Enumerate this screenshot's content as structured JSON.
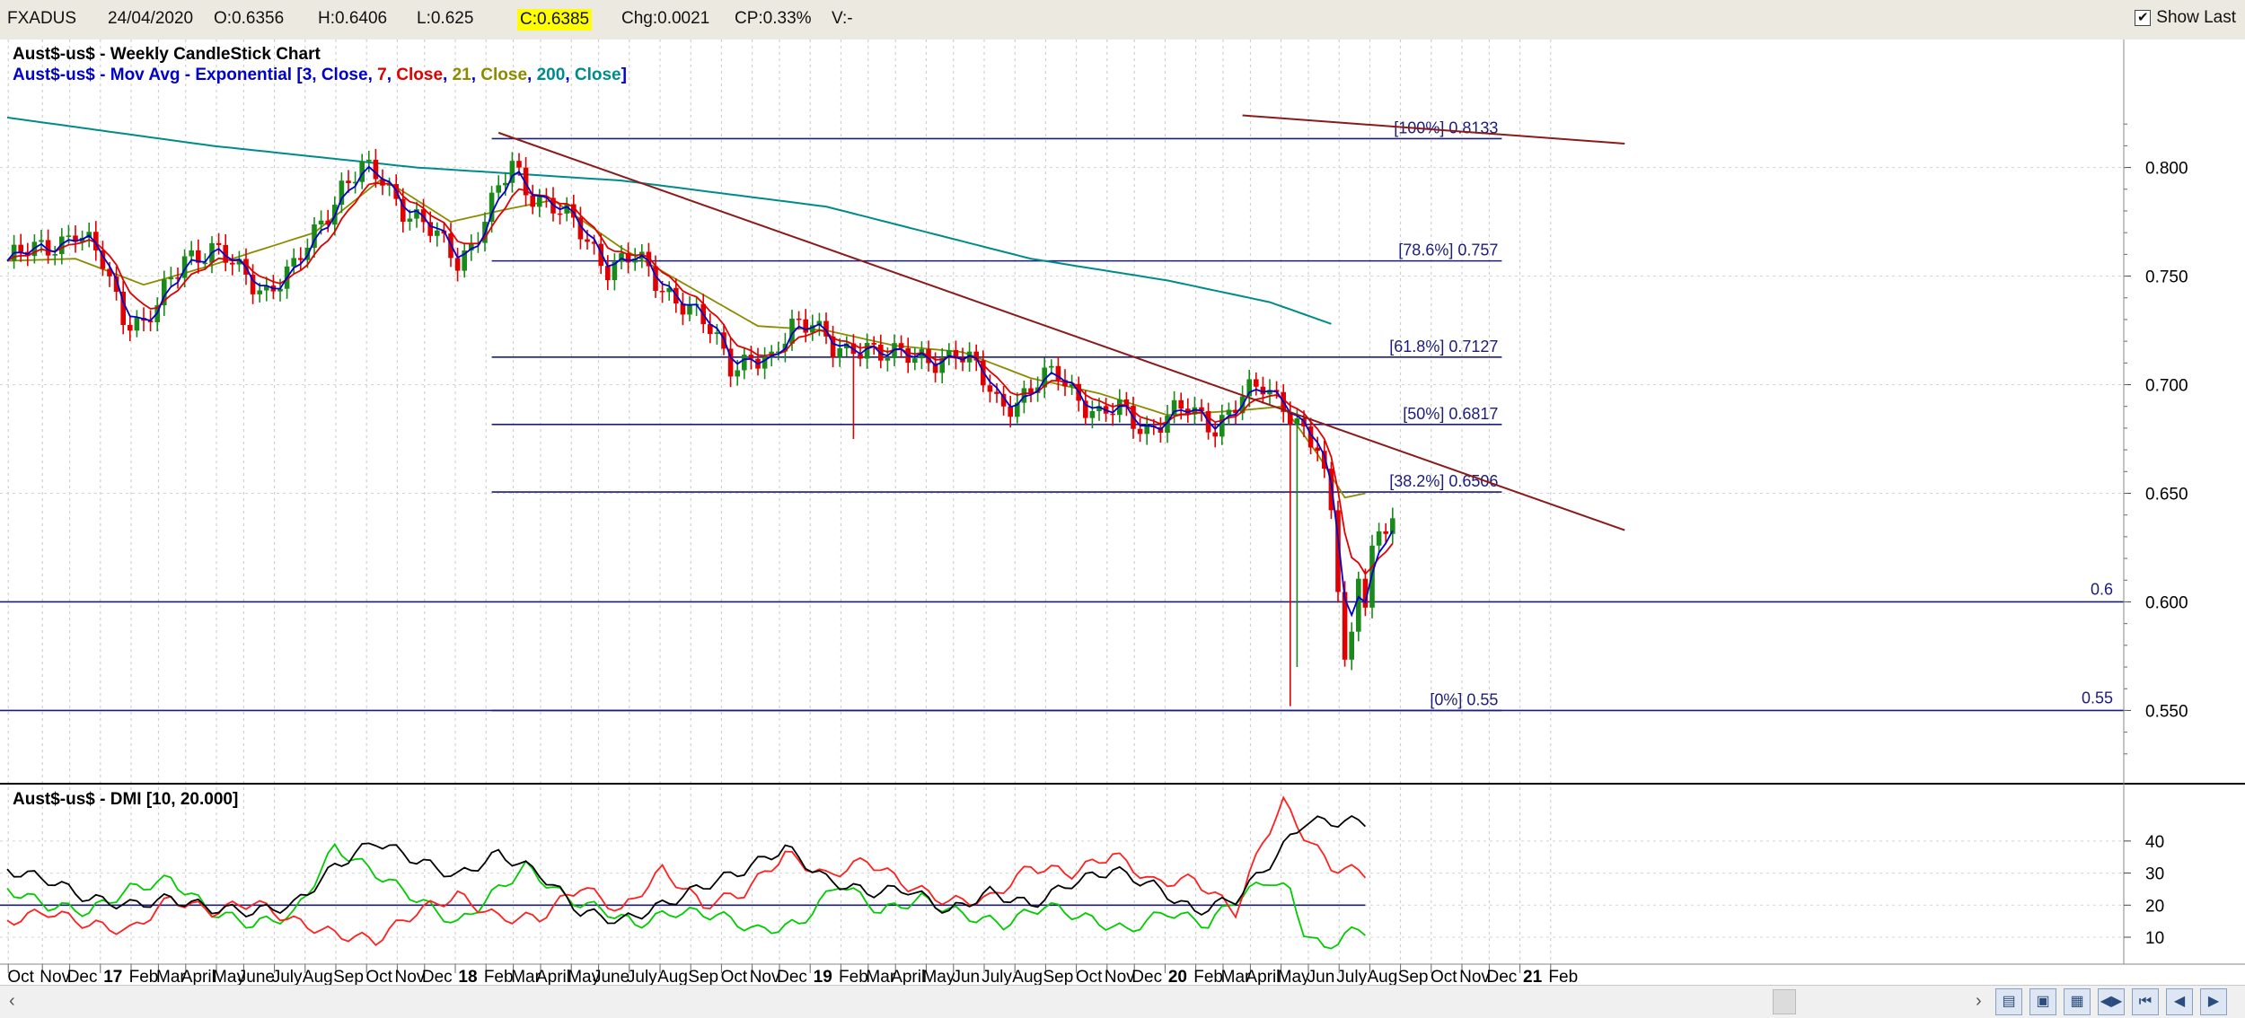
{
  "toolbar": {
    "symbol": "FXADUS",
    "date": "24/04/2020",
    "open": "O:0.6356",
    "high": "H:0.6406",
    "low": "L:0.625",
    "close": "C:0.6385",
    "change": "Chg:0.0021",
    "change_pct": "CP:0.33%",
    "volume": "V:-",
    "show_last_label": "Show Last",
    "show_last_checked": true
  },
  "chart_data": [
    {
      "type": "candlestick",
      "title": "Aust$-us$ - Weekly CandleStick Chart",
      "subtitle_prefix": "Aust$-us$ - Mov Avg - Exponential [",
      "ma_legend": [
        {
          "period": "3",
          "field": "Close",
          "color": "#0000cc"
        },
        {
          "period": "7",
          "field": "Close",
          "color": "#e00000"
        },
        {
          "period": "21",
          "field": "Close",
          "color": "#8b8b00"
        },
        {
          "period": "200",
          "field": "Close",
          "color": "#008b8b"
        }
      ],
      "ylim": [
        0.52,
        0.83
      ],
      "y_ticks": [
        "0.800",
        "0.750",
        "0.700",
        "0.650",
        "0.600",
        "0.550"
      ],
      "y_tick_values": [
        0.8,
        0.75,
        0.7,
        0.65,
        0.6,
        0.55
      ],
      "colors": {
        "up": "#1a8a1a",
        "down": "#e00000",
        "ema3": "#0000cc",
        "ema7": "#e00000",
        "ema21": "#8b8b00",
        "ema200": "#008b8b",
        "trend": "#8b1a1a",
        "fib": "#1c1c7c",
        "pdi": "#00cc00",
        "mdi": "#ff2020",
        "adx": "#000000"
      },
      "x_range_weeks": [
        0,
        251
      ],
      "close_waypoints": [
        [
          0,
          0.757
        ],
        [
          5,
          0.763
        ],
        [
          10,
          0.77
        ],
        [
          14,
          0.756
        ],
        [
          17,
          0.733
        ],
        [
          20,
          0.727
        ],
        [
          22,
          0.735
        ],
        [
          26,
          0.76
        ],
        [
          30,
          0.762
        ],
        [
          34,
          0.752
        ],
        [
          38,
          0.744
        ],
        [
          42,
          0.752
        ],
        [
          46,
          0.776
        ],
        [
          49,
          0.791
        ],
        [
          52,
          0.798
        ],
        [
          55,
          0.795
        ],
        [
          58,
          0.782
        ],
        [
          62,
          0.77
        ],
        [
          66,
          0.758
        ],
        [
          68,
          0.765
        ],
        [
          71,
          0.782
        ],
        [
          74,
          0.801
        ],
        [
          76,
          0.791
        ],
        [
          80,
          0.782
        ],
        [
          84,
          0.77
        ],
        [
          88,
          0.755
        ],
        [
          92,
          0.758
        ],
        [
          95,
          0.748
        ],
        [
          99,
          0.738
        ],
        [
          103,
          0.724
        ],
        [
          106,
          0.71
        ],
        [
          109,
          0.713
        ],
        [
          112,
          0.708
        ],
        [
          115,
          0.728
        ],
        [
          118,
          0.732
        ],
        [
          121,
          0.715
        ],
        [
          123,
          0.712
        ],
        [
          126,
          0.719
        ],
        [
          129,
          0.716
        ],
        [
          133,
          0.71
        ],
        [
          136,
          0.712
        ],
        [
          139,
          0.716
        ],
        [
          142,
          0.706
        ],
        [
          145,
          0.692
        ],
        [
          148,
          0.693
        ],
        [
          151,
          0.7
        ],
        [
          154,
          0.705
        ],
        [
          157,
          0.695
        ],
        [
          160,
          0.685
        ],
        [
          163,
          0.688
        ],
        [
          167,
          0.68
        ],
        [
          170,
          0.685
        ],
        [
          173,
          0.688
        ],
        [
          177,
          0.682
        ],
        [
          181,
          0.693
        ],
        [
          184,
          0.699
        ],
        [
          187,
          0.693
        ],
        [
          189,
          0.682
        ],
        [
          192,
          0.668
        ],
        [
          194,
          0.641
        ],
        [
          195,
          0.61
        ],
        [
          196,
          0.575
        ],
        [
          197,
          0.585
        ],
        [
          198,
          0.615
        ],
        [
          199,
          0.602
        ],
        [
          200,
          0.622
        ],
        [
          202,
          0.632
        ],
        [
          203,
          0.6385
        ]
      ],
      "ema200_waypoints": [
        [
          0,
          0.823
        ],
        [
          30,
          0.81
        ],
        [
          60,
          0.8
        ],
        [
          90,
          0.794
        ],
        [
          120,
          0.782
        ],
        [
          150,
          0.758
        ],
        [
          170,
          0.748
        ],
        [
          185,
          0.738
        ],
        [
          194,
          0.728
        ]
      ],
      "ema21_waypoints": [
        [
          0,
          0.757
        ],
        [
          10,
          0.758
        ],
        [
          20,
          0.746
        ],
        [
          30,
          0.755
        ],
        [
          45,
          0.77
        ],
        [
          55,
          0.795
        ],
        [
          65,
          0.775
        ],
        [
          72,
          0.78
        ],
        [
          80,
          0.785
        ],
        [
          90,
          0.763
        ],
        [
          100,
          0.745
        ],
        [
          110,
          0.727
        ],
        [
          120,
          0.725
        ],
        [
          130,
          0.718
        ],
        [
          140,
          0.715
        ],
        [
          150,
          0.703
        ],
        [
          160,
          0.696
        ],
        [
          170,
          0.686
        ],
        [
          180,
          0.688
        ],
        [
          187,
          0.69
        ],
        [
          192,
          0.668
        ],
        [
          196,
          0.648
        ],
        [
          199,
          0.65
        ]
      ],
      "spikes": [
        {
          "week": 124,
          "low": 0.675
        },
        {
          "week": 188,
          "low": 0.552
        },
        {
          "week": 189,
          "low": 0.57
        }
      ],
      "trendlines": [
        {
          "from": [
            72,
            0.816
          ],
          "to": [
            237,
            0.633
          ]
        },
        {
          "from": [
            181,
            0.824
          ],
          "to": [
            237,
            0.811
          ]
        }
      ],
      "fib_levels": [
        {
          "label": "[100%] 0.8133",
          "value": 0.8133
        },
        {
          "label": "[78.6%] 0.757",
          "value": 0.757
        },
        {
          "label": "[61.8%] 0.7127",
          "value": 0.7127
        },
        {
          "label": "[50%] 0.6817",
          "value": 0.6817
        },
        {
          "label": "[38.2%] 0.6506",
          "value": 0.6506
        },
        {
          "label": "[0%] 0.55",
          "value": 0.55
        }
      ],
      "horizontal_lines": [
        {
          "label": "0.6",
          "value": 0.6
        },
        {
          "label": "0.55",
          "value": 0.55
        }
      ],
      "fib_start_week": 71,
      "fib_end_week": 219
    },
    {
      "type": "line",
      "title": "Aust$-us$ - DMI [10, 20.000]",
      "ylim": [
        3,
        52
      ],
      "y_ticks": [
        "40",
        "30",
        "20",
        "10"
      ],
      "y_tick_values": [
        40,
        30,
        20,
        10
      ],
      "threshold": 20,
      "series": [
        {
          "key": "pdi",
          "values": [
            [
              0,
              25
            ],
            [
              6,
              20
            ],
            [
              12,
              18
            ],
            [
              18,
              25
            ],
            [
              24,
              28
            ],
            [
              30,
              18
            ],
            [
              36,
              14
            ],
            [
              42,
              17
            ],
            [
              48,
              38
            ],
            [
              54,
              30
            ],
            [
              60,
              22
            ],
            [
              66,
              14
            ],
            [
              72,
              25
            ],
            [
              76,
              32
            ],
            [
              82,
              22
            ],
            [
              88,
              18
            ],
            [
              92,
              14
            ],
            [
              98,
              18
            ],
            [
              104,
              17
            ],
            [
              110,
              12
            ],
            [
              116,
              14
            ],
            [
              122,
              27
            ],
            [
              128,
              18
            ],
            [
              134,
              22
            ],
            [
              140,
              17
            ],
            [
              146,
              14
            ],
            [
              152,
              20
            ],
            [
              158,
              16
            ],
            [
              164,
              12
            ],
            [
              170,
              18
            ],
            [
              176,
              14
            ],
            [
              180,
              22
            ],
            [
              185,
              28
            ],
            [
              188,
              24
            ],
            [
              190,
              12
            ],
            [
              193,
              6
            ],
            [
              196,
              11
            ],
            [
              199,
              12
            ]
          ]
        },
        {
          "key": "mdi",
          "values": [
            [
              0,
              15
            ],
            [
              6,
              18
            ],
            [
              12,
              14
            ],
            [
              18,
              12
            ],
            [
              24,
              22
            ],
            [
              30,
              18
            ],
            [
              36,
              21
            ],
            [
              42,
              15
            ],
            [
              48,
              11
            ],
            [
              54,
              9
            ],
            [
              60,
              18
            ],
            [
              66,
              23
            ],
            [
              72,
              16
            ],
            [
              78,
              16
            ],
            [
              84,
              26
            ],
            [
              90,
              18
            ],
            [
              96,
              31
            ],
            [
              102,
              20
            ],
            [
              108,
              24
            ],
            [
              114,
              36
            ],
            [
              120,
              29
            ],
            [
              126,
              34
            ],
            [
              132,
              26
            ],
            [
              138,
              21
            ],
            [
              144,
              22
            ],
            [
              150,
              32
            ],
            [
              156,
              30
            ],
            [
              162,
              36
            ],
            [
              168,
              27
            ],
            [
              174,
              28
            ],
            [
              180,
              18
            ],
            [
              184,
              40
            ],
            [
              187,
              52
            ],
            [
              190,
              42
            ],
            [
              194,
              32
            ],
            [
              199,
              30
            ]
          ]
        },
        {
          "key": "adx",
          "values": [
            [
              0,
              31
            ],
            [
              6,
              28
            ],
            [
              12,
              22
            ],
            [
              18,
              20
            ],
            [
              24,
              22
            ],
            [
              30,
              19
            ],
            [
              36,
              18
            ],
            [
              42,
              20
            ],
            [
              48,
              32
            ],
            [
              54,
              40
            ],
            [
              60,
              34
            ],
            [
              66,
              29
            ],
            [
              72,
              36
            ],
            [
              78,
              30
            ],
            [
              84,
              18
            ],
            [
              90,
              15
            ],
            [
              96,
              20
            ],
            [
              102,
              26
            ],
            [
              108,
              31
            ],
            [
              114,
              38
            ],
            [
              120,
              28
            ],
            [
              126,
              24
            ],
            [
              132,
              25
            ],
            [
              138,
              18
            ],
            [
              144,
              24
            ],
            [
              150,
              20
            ],
            [
              156,
              27
            ],
            [
              162,
              31
            ],
            [
              168,
              26
            ],
            [
              174,
              18
            ],
            [
              180,
              22
            ],
            [
              185,
              33
            ],
            [
              190,
              46
            ],
            [
              199,
              46
            ]
          ]
        }
      ]
    }
  ],
  "x_axis": {
    "labels": [
      {
        "text": "Oct",
        "week": 2.0
      },
      {
        "text": "Nov",
        "week": 7.0
      },
      {
        "text": "Dec",
        "week": 11.0
      },
      {
        "text": "17",
        "week": 15.5,
        "bold": true
      },
      {
        "text": "Feb",
        "week": 20.0
      },
      {
        "text": "Mar",
        "week": 24.0
      },
      {
        "text": "April",
        "week": 28.0
      },
      {
        "text": "May",
        "week": 32.5
      },
      {
        "text": "June",
        "week": 36.5
      },
      {
        "text": "July",
        "week": 41.0
      },
      {
        "text": "Aug",
        "week": 45.5
      },
      {
        "text": "Sep",
        "week": 50.0
      },
      {
        "text": "Oct",
        "week": 54.5
      },
      {
        "text": "Nov",
        "week": 59.0
      },
      {
        "text": "Dec",
        "week": 63.0
      },
      {
        "text": "18",
        "week": 67.5,
        "bold": true
      },
      {
        "text": "Feb",
        "week": 72.0
      },
      {
        "text": "Mar",
        "week": 76.0
      },
      {
        "text": "April",
        "week": 80.0
      },
      {
        "text": "May",
        "week": 84.5
      },
      {
        "text": "June",
        "week": 88.5
      },
      {
        "text": "July",
        "week": 93.0
      },
      {
        "text": "Aug",
        "week": 97.5
      },
      {
        "text": "Sep",
        "week": 102.0
      },
      {
        "text": "Oct",
        "week": 106.5
      },
      {
        "text": "Nov",
        "week": 111.0
      },
      {
        "text": "Dec",
        "week": 115.0
      },
      {
        "text": "19",
        "week": 119.5,
        "bold": true
      },
      {
        "text": "Feb",
        "week": 124.0
      },
      {
        "text": "Mar",
        "week": 128.0
      },
      {
        "text": "April",
        "week": 132.0
      },
      {
        "text": "May",
        "week": 136.5
      },
      {
        "text": "Jun",
        "week": 140.5
      },
      {
        "text": "July",
        "week": 145.0
      },
      {
        "text": "Aug",
        "week": 149.5
      },
      {
        "text": "Sep",
        "week": 154.0
      },
      {
        "text": "Oct",
        "week": 158.5
      },
      {
        "text": "Nov",
        "week": 163.0
      },
      {
        "text": "Dec",
        "week": 167.0
      },
      {
        "text": "20",
        "week": 171.5,
        "bold": true
      },
      {
        "text": "Feb",
        "week": 176.0
      },
      {
        "text": "Mar",
        "week": 180.0
      },
      {
        "text": "April",
        "week": 184.0
      },
      {
        "text": "May",
        "week": 188.5
      },
      {
        "text": "Jun",
        "week": 192.5
      },
      {
        "text": "July",
        "week": 197.0
      },
      {
        "text": "Aug",
        "week": 201.5
      },
      {
        "text": "Sep",
        "week": 206.0
      },
      {
        "text": "Oct",
        "week": 210.5
      },
      {
        "text": "Nov",
        "week": 215.0
      },
      {
        "text": "Dec",
        "week": 219.0
      },
      {
        "text": "21",
        "week": 223.5,
        "bold": true
      },
      {
        "text": "Feb",
        "week": 228.0
      }
    ]
  }
}
